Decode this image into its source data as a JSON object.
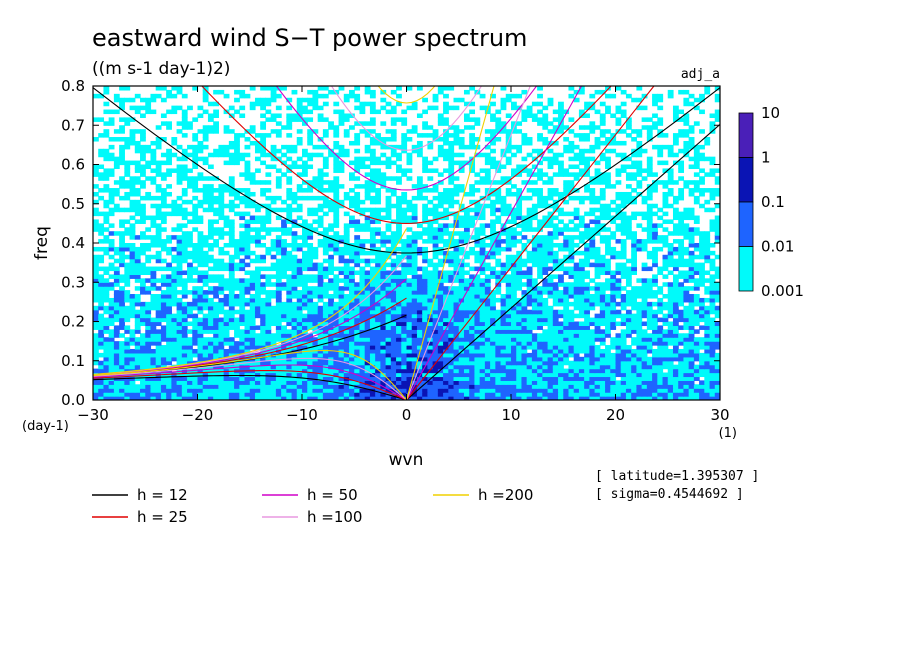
{
  "chart_data": {
    "type": "heatmap",
    "title": "eastward wind S−T power spectrum",
    "subtitle": "((m s-1 day-1)2)",
    "tag": "adj_a",
    "xlabel": "wvn",
    "ylabel": "freq",
    "x_unit": "(1)",
    "y_unit": "(day-1)",
    "xlim": [
      -30,
      30
    ],
    "ylim": [
      0,
      0.8
    ],
    "x_ticks": [
      "−30",
      "−20",
      "−10",
      "0",
      "10",
      "20",
      "30"
    ],
    "y_ticks": [
      "0.0",
      "0.1",
      "0.2",
      "0.3",
      "0.4",
      "0.5",
      "0.6",
      "0.7",
      "0.8"
    ],
    "colorbar": {
      "labels": [
        "10",
        "1",
        "0.1",
        "0.01",
        "0.001"
      ],
      "colors": [
        "#4a1fb8",
        "#0a14b4",
        "#1e64ff",
        "#00fafa"
      ]
    },
    "contour_levels": [
      0.001,
      0.01,
      0.1,
      1
    ],
    "dispersion_curves": [
      {
        "name": "h = 12",
        "color": "#000000"
      },
      {
        "name": "h = 25",
        "color": "#e00000"
      },
      {
        "name": "h = 50",
        "color": "#d000c8"
      },
      {
        "name": "h =100",
        "color": "#e898e0"
      },
      {
        "name": "h =200",
        "color": "#f0d000"
      }
    ],
    "info": {
      "latitude": "[ latitude=1.395307 ]",
      "sigma": "[ sigma=0.4544692 ]"
    }
  }
}
